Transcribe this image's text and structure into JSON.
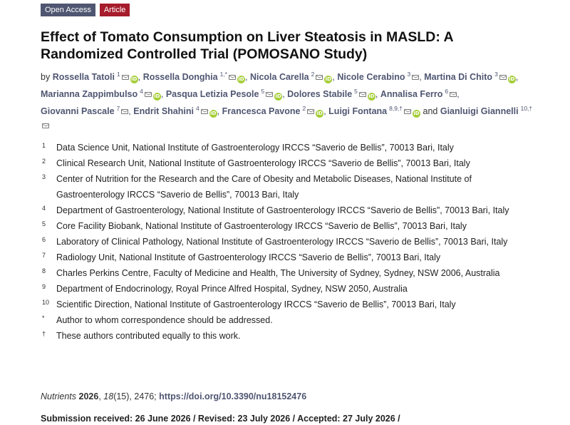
{
  "badges": {
    "open_access": "Open Access",
    "article": "Article"
  },
  "title": "Effect of Tomato Consumption on Liver Steatosis in MASLD: A Randomized Controlled Trial (POMOSANO Study)",
  "authors": {
    "by": "by",
    "and": "and",
    "list": [
      {
        "name": "Rossella Tatoli",
        "sup": "1"
      },
      {
        "name": "Rossella Donghia",
        "sup": "1,*"
      },
      {
        "name": "Nicola Carella",
        "sup": "2"
      },
      {
        "name": "Nicole Cerabino",
        "sup": "3"
      },
      {
        "name": "Martina Di Chito",
        "sup": "3"
      },
      {
        "name": "Marianna Zappimbulso",
        "sup": "4"
      },
      {
        "name": "Pasqua Letizia Pesole",
        "sup": "5"
      },
      {
        "name": "Dolores Stabile",
        "sup": "5"
      },
      {
        "name": "Annalisa Ferro",
        "sup": "6"
      },
      {
        "name": "Giovanni Pascale",
        "sup": "7"
      },
      {
        "name": "Endrit Shahini",
        "sup": "4"
      },
      {
        "name": "Francesca Pavone",
        "sup": "2"
      },
      {
        "name": "Luigi Fontana",
        "sup": "8,9,†"
      },
      {
        "name": "Gianluigi Giannelli",
        "sup": "10,†"
      }
    ]
  },
  "affiliations": [
    {
      "num": "1",
      "text": "Data Science Unit, National Institute of Gastroenterology IRCCS “Saverio de Bellis”, 70013 Bari, Italy"
    },
    {
      "num": "2",
      "text": "Clinical Research Unit, National Institute of Gastroenterology IRCCS “Saverio de Bellis”, 70013 Bari, Italy"
    },
    {
      "num": "3",
      "text": "Center of Nutrition for the Research and the Care of Obesity and Metabolic Diseases, National Institute of Gastroenterology IRCCS “Saverio de Bellis”, 70013 Bari, Italy"
    },
    {
      "num": "4",
      "text": "Department of Gastroenterology, National Institute of Gastroenterology IRCCS “Saverio de Bellis”, 70013 Bari, Italy"
    },
    {
      "num": "5",
      "text": "Core Facility Biobank, National Institute of Gastroenterology IRCCS “Saverio de Bellis”, 70013 Bari, Italy"
    },
    {
      "num": "6",
      "text": "Laboratory of Clinical Pathology, National Institute of Gastroenterology IRCCS “Saverio de Bellis”, 70013 Bari, Italy"
    },
    {
      "num": "7",
      "text": "Radiology Unit, National Institute of Gastroenterology IRCCS “Saverio de Bellis”, 70013 Bari, Italy"
    },
    {
      "num": "8",
      "text": "Charles Perkins Centre, Faculty of Medicine and Health, The University of Sydney, Sydney, NSW 2006, Australia"
    },
    {
      "num": "9",
      "text": "Department of Endocrinology, Royal Prince Alfred Hospital, Sydney, NSW 2050, Australia"
    },
    {
      "num": "10",
      "text": "Scientific Direction, National Institute of Gastroenterology IRCCS “Saverio de Bellis”, 70013 Bari, Italy"
    },
    {
      "num": "*",
      "text": "Author to whom correspondence should be addressed."
    },
    {
      "num": "†",
      "text": "These authors contributed equally to this work."
    }
  ],
  "citation": {
    "journal": "Nutrients",
    "year": "2026",
    "volume": "18",
    "issue_pages": "(15), 2476;",
    "doi": "https://doi.org/10.3390/nu18152476"
  },
  "dates": "Submission received: 26 June 2026 / Revised: 23 July 2026 / Accepted: 27 July 2026 /",
  "colors": {
    "open_access_badge": "#4f5671",
    "article_badge": "#a61c2c",
    "orcid": "#a6ce39",
    "author_link": "#4f5671"
  },
  "icons": {
    "mail": "mail-icon",
    "orcid": "orcid-icon"
  }
}
